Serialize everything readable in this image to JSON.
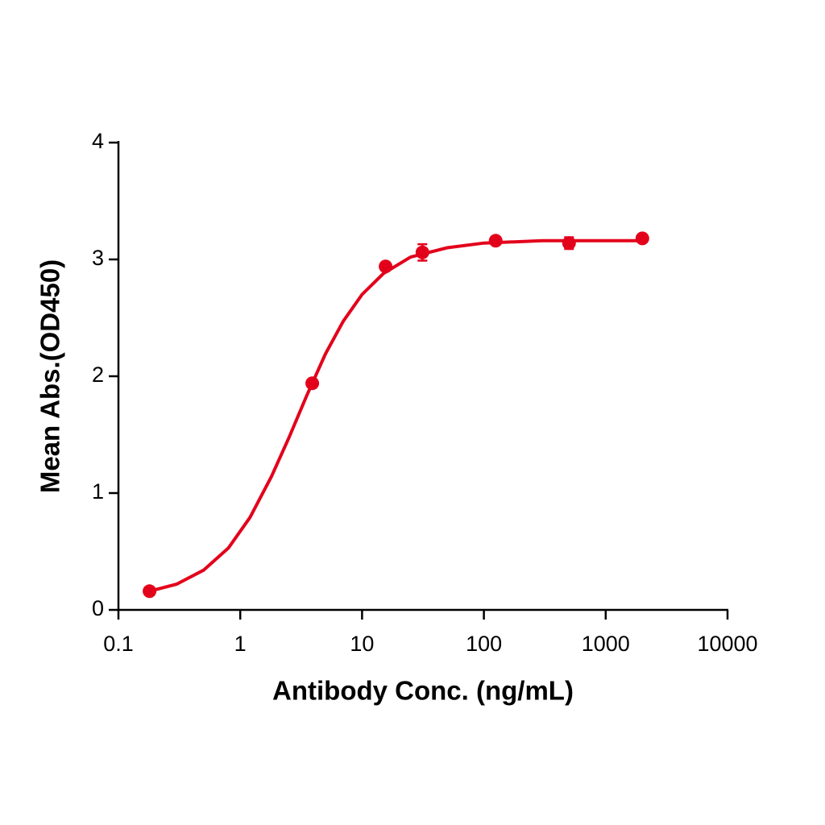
{
  "chart_data": {
    "type": "scatter",
    "x_label": "Antibody Conc. (ng/mL)",
    "y_label": "Mean Abs.(OD450)",
    "x": [
      0.18,
      3.9,
      15.6,
      31.3,
      125,
      500,
      2000
    ],
    "values": [
      0.16,
      1.94,
      2.94,
      3.06,
      3.16,
      3.14,
      3.18
    ],
    "errors": [
      0.02,
      0.03,
      0.03,
      0.07,
      0.03,
      0.05,
      0.02
    ],
    "fit_x": [
      0.18,
      0.3,
      0.5,
      0.8,
      1.2,
      1.8,
      2.5,
      3.5,
      5,
      7,
      10,
      15,
      25,
      50,
      100,
      300,
      2000
    ],
    "fit_values": [
      0.16,
      0.22,
      0.34,
      0.53,
      0.79,
      1.14,
      1.47,
      1.83,
      2.19,
      2.47,
      2.7,
      2.88,
      3.02,
      3.1,
      3.14,
      3.16,
      3.16
    ],
    "color": "#e3001b",
    "x_scale": "log",
    "xlim": [
      0.1,
      10000
    ],
    "xticks": [
      0.1,
      1,
      10,
      100,
      1000,
      10000
    ],
    "ylim": [
      0,
      4
    ],
    "yticks": [
      0,
      1,
      2,
      3,
      4
    ],
    "grid": false
  }
}
